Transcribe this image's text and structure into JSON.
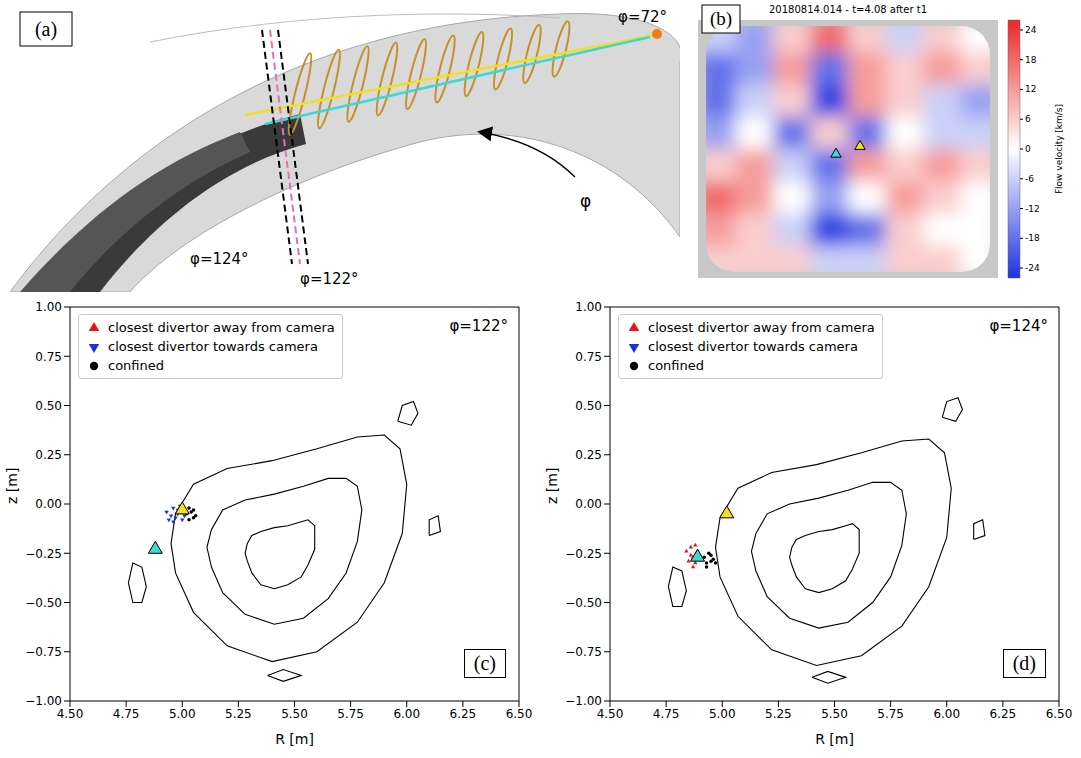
{
  "panel_a": {
    "label": "(a)",
    "annotations": [
      "φ=72°",
      "φ=122°",
      "φ=124°"
    ],
    "arrow_label": "φ"
  },
  "panel_b": {
    "label": "(b)",
    "title": "20180814.014 - t=4.08 after t1",
    "colorbar": {
      "label": "Flow velocity [km/s]",
      "lim": [
        -26,
        26
      ],
      "ticks": [
        -24,
        -18,
        -12,
        -6,
        0,
        6,
        12,
        18,
        24
      ]
    },
    "cells": [
      [
        -6,
        -12,
        6,
        18,
        6,
        -6,
        6,
        0
      ],
      [
        -18,
        -12,
        12,
        -18,
        12,
        6,
        12,
        6
      ],
      [
        -18,
        -6,
        6,
        -24,
        12,
        6,
        -6,
        -12
      ],
      [
        -12,
        0,
        -18,
        6,
        -18,
        0,
        -6,
        -6
      ],
      [
        6,
        12,
        -6,
        -18,
        12,
        6,
        12,
        6
      ],
      [
        18,
        12,
        0,
        -12,
        0,
        12,
        6,
        0
      ],
      [
        12,
        6,
        -6,
        -24,
        -18,
        6,
        0,
        0
      ],
      [
        6,
        6,
        6,
        -6,
        -6,
        6,
        6,
        0
      ]
    ]
  },
  "chart_data": [
    {
      "type": "scatter",
      "label": "(c)",
      "annotation": "φ=122°",
      "xlabel": "R [m]",
      "ylabel": "z [m]",
      "xlim": [
        4.5,
        6.5
      ],
      "xticks": [
        {
          "value": 4.5,
          "label": "4.50"
        },
        {
          "value": 4.75,
          "label": "4.75"
        },
        {
          "value": 5,
          "label": "5.00"
        },
        {
          "value": 5.25,
          "label": "5.25"
        },
        {
          "value": 5.5,
          "label": "5.50"
        },
        {
          "value": 5.75,
          "label": "5.75"
        },
        {
          "value": 6,
          "label": "6.00"
        },
        {
          "value": 6.25,
          "label": "6.25"
        },
        {
          "value": 6.5,
          "label": "6.50"
        }
      ],
      "ylim": [
        -1,
        1
      ],
      "yticks": [
        {
          "value": -1,
          "label": "−1.00"
        },
        {
          "value": -0.75,
          "label": "−0.75"
        },
        {
          "value": -0.5,
          "label": "−0.50"
        },
        {
          "value": -0.25,
          "label": "−0.25"
        },
        {
          "value": 0,
          "label": "0.00"
        },
        {
          "value": 0.25,
          "label": "0.25"
        },
        {
          "value": 0.5,
          "label": "0.50"
        },
        {
          "value": 0.75,
          "label": "0.75"
        },
        {
          "value": 1,
          "label": "1.00"
        }
      ],
      "legend": "upper left",
      "series": [
        {
          "name": "closest divertor away from camera",
          "color": "#e8141c",
          "marker": "triangle-up",
          "x": [],
          "y": []
        },
        {
          "name": "closest divertor towards camera",
          "color": "#1a2ee8",
          "marker": "triangle-down",
          "x": [
            4.93,
            4.95,
            4.96,
            4.97,
            4.98,
            4.99,
            5.0,
            5.01,
            4.94,
            4.96,
            4.98,
            5.0
          ],
          "y": [
            -0.04,
            -0.06,
            -0.02,
            -0.07,
            -0.05,
            -0.01,
            -0.08,
            -0.06,
            -0.08,
            -0.09,
            -0.03,
            -0.04
          ]
        },
        {
          "name": "confined",
          "color": "#000000",
          "marker": "circle",
          "x": [
            5.02,
            5.03,
            5.04,
            5.05,
            5.06,
            5.03,
            5.05
          ],
          "y": [
            -0.05,
            -0.08,
            -0.04,
            -0.07,
            -0.06,
            -0.02,
            -0.03
          ]
        }
      ],
      "markers": [
        {
          "x": 4.88,
          "y": -0.23,
          "color": "#3fd6d6"
        },
        {
          "x": 5.0,
          "y": -0.03,
          "color": "#f2e01e"
        }
      ],
      "flux_surfaces": [
        {
          "x": [
            4.97,
            5.05,
            5.2,
            5.4,
            5.6,
            5.78,
            5.9,
            5.97,
            6.0,
            5.98,
            5.9,
            5.78,
            5.6,
            5.4,
            5.2,
            5.05,
            4.97,
            4.95
          ],
          "y": [
            -0.05,
            0.1,
            0.18,
            0.22,
            0.28,
            0.34,
            0.35,
            0.28,
            0.1,
            -0.15,
            -0.4,
            -0.6,
            -0.75,
            -0.8,
            -0.72,
            -0.55,
            -0.35,
            -0.2
          ]
        },
        {
          "x": [
            5.13,
            5.18,
            5.28,
            5.41,
            5.54,
            5.65,
            5.73,
            5.78,
            5.8,
            5.78,
            5.73,
            5.65,
            5.54,
            5.41,
            5.28,
            5.18,
            5.13,
            5.11
          ],
          "y": [
            -0.13,
            -0.03,
            0.02,
            0.05,
            0.09,
            0.13,
            0.13,
            0.09,
            -0.03,
            -0.19,
            -0.35,
            -0.48,
            -0.58,
            -0.61,
            -0.56,
            -0.45,
            -0.32,
            -0.22
          ]
        },
        {
          "x": [
            5.29,
            5.31,
            5.35,
            5.41,
            5.47,
            5.53,
            5.56,
            5.59,
            5.59,
            5.59,
            5.56,
            5.53,
            5.47,
            5.41,
            5.35,
            5.31,
            5.29,
            5.28
          ],
          "y": [
            -0.2,
            -0.16,
            -0.14,
            -0.12,
            -0.11,
            -0.09,
            -0.08,
            -0.11,
            -0.16,
            -0.23,
            -0.31,
            -0.37,
            -0.41,
            -0.43,
            -0.41,
            -0.35,
            -0.29,
            -0.25
          ]
        },
        {
          "x": [
            4.76,
            4.78,
            4.82,
            4.84,
            4.82,
            4.78
          ],
          "y": [
            -0.4,
            -0.3,
            -0.32,
            -0.42,
            -0.5,
            -0.5
          ]
        },
        {
          "x": [
            5.96,
            5.98,
            6.03,
            6.05,
            6.02
          ],
          "y": [
            0.42,
            0.5,
            0.52,
            0.46,
            0.4
          ]
        },
        {
          "x": [
            6.1,
            6.1,
            6.14,
            6.15
          ],
          "y": [
            -0.16,
            -0.08,
            -0.06,
            -0.14
          ]
        },
        {
          "x": [
            5.38,
            5.45,
            5.53,
            5.45
          ],
          "y": [
            -0.87,
            -0.84,
            -0.87,
            -0.9
          ]
        }
      ]
    },
    {
      "type": "scatter",
      "label": "(d)",
      "annotation": "φ=124°",
      "xlabel": "R [m]",
      "ylabel": "z [m]",
      "xlim": [
        4.5,
        6.5
      ],
      "xticks": [
        {
          "value": 4.5,
          "label": "4.50"
        },
        {
          "value": 4.75,
          "label": "4.75"
        },
        {
          "value": 5,
          "label": "5.00"
        },
        {
          "value": 5.25,
          "label": "5.25"
        },
        {
          "value": 5.5,
          "label": "5.50"
        },
        {
          "value": 5.75,
          "label": "5.75"
        },
        {
          "value": 6,
          "label": "6.00"
        },
        {
          "value": 6.25,
          "label": "6.25"
        },
        {
          "value": 6.5,
          "label": "6.50"
        }
      ],
      "ylim": [
        -1,
        1
      ],
      "yticks": [
        {
          "value": -1,
          "label": "−1.00"
        },
        {
          "value": -0.75,
          "label": "−0.75"
        },
        {
          "value": -0.5,
          "label": "−0.50"
        },
        {
          "value": -0.25,
          "label": "−0.25"
        },
        {
          "value": 0,
          "label": "0.00"
        },
        {
          "value": 0.25,
          "label": "0.25"
        },
        {
          "value": 0.5,
          "label": "0.50"
        },
        {
          "value": 0.75,
          "label": "0.75"
        },
        {
          "value": 1,
          "label": "1.00"
        }
      ],
      "legend": "upper left",
      "series": [
        {
          "name": "closest divertor away from camera",
          "color": "#e8141c",
          "marker": "triangle-up",
          "x": [
            4.84,
            4.86,
            4.87,
            4.88,
            4.89,
            4.85,
            4.87,
            4.9,
            4.86,
            4.88
          ],
          "y": [
            -0.24,
            -0.22,
            -0.27,
            -0.3,
            -0.24,
            -0.29,
            -0.32,
            -0.28,
            -0.26,
            -0.21
          ]
        },
        {
          "name": "closest divertor towards camera",
          "color": "#1a2ee8",
          "marker": "triangle-down",
          "x": [],
          "y": []
        },
        {
          "name": "confined",
          "color": "#000000",
          "marker": "circle",
          "x": [
            4.92,
            4.93,
            4.94,
            4.95,
            4.96,
            4.93,
            4.95,
            4.97
          ],
          "y": [
            -0.27,
            -0.3,
            -0.25,
            -0.29,
            -0.28,
            -0.32,
            -0.26,
            -0.3
          ]
        }
      ],
      "markers": [
        {
          "x": 4.89,
          "y": -0.27,
          "color": "#3fd6d6"
        },
        {
          "x": 5.02,
          "y": -0.05,
          "color": "#f2e01e"
        }
      ],
      "flux_surfaces": [
        {
          "x": [
            4.99,
            5.07,
            5.22,
            5.42,
            5.62,
            5.8,
            5.92,
            5.99,
            6.02,
            6.0,
            5.92,
            5.8,
            5.62,
            5.42,
            5.22,
            5.07,
            4.99,
            4.97
          ],
          "y": [
            -0.07,
            0.08,
            0.16,
            0.2,
            0.26,
            0.32,
            0.33,
            0.26,
            0.08,
            -0.17,
            -0.42,
            -0.62,
            -0.77,
            -0.82,
            -0.74,
            -0.57,
            -0.37,
            -0.22
          ]
        },
        {
          "x": [
            5.15,
            5.2,
            5.3,
            5.43,
            5.56,
            5.67,
            5.75,
            5.8,
            5.82,
            5.8,
            5.75,
            5.67,
            5.56,
            5.43,
            5.3,
            5.2,
            5.15,
            5.13
          ],
          "y": [
            -0.15,
            -0.05,
            0.0,
            0.03,
            0.07,
            0.11,
            0.11,
            0.07,
            -0.05,
            -0.21,
            -0.37,
            -0.5,
            -0.6,
            -0.63,
            -0.58,
            -0.47,
            -0.34,
            -0.24
          ]
        },
        {
          "x": [
            5.31,
            5.33,
            5.37,
            5.43,
            5.49,
            5.55,
            5.58,
            5.61,
            5.61,
            5.61,
            5.58,
            5.55,
            5.49,
            5.43,
            5.37,
            5.33,
            5.31,
            5.3
          ],
          "y": [
            -0.22,
            -0.18,
            -0.16,
            -0.14,
            -0.13,
            -0.11,
            -0.1,
            -0.13,
            -0.18,
            -0.25,
            -0.33,
            -0.39,
            -0.43,
            -0.45,
            -0.43,
            -0.37,
            -0.31,
            -0.27
          ]
        },
        {
          "x": [
            4.76,
            4.78,
            4.82,
            4.84,
            4.82,
            4.78
          ],
          "y": [
            -0.42,
            -0.32,
            -0.34,
            -0.44,
            -0.52,
            -0.52
          ]
        },
        {
          "x": [
            5.98,
            6.0,
            6.05,
            6.07,
            6.04
          ],
          "y": [
            0.44,
            0.52,
            0.54,
            0.48,
            0.42
          ]
        },
        {
          "x": [
            6.12,
            6.12,
            6.16,
            6.17
          ],
          "y": [
            -0.18,
            -0.1,
            -0.08,
            -0.16
          ]
        },
        {
          "x": [
            5.4,
            5.47,
            5.55,
            5.47
          ],
          "y": [
            -0.88,
            -0.85,
            -0.88,
            -0.91
          ]
        }
      ]
    }
  ]
}
